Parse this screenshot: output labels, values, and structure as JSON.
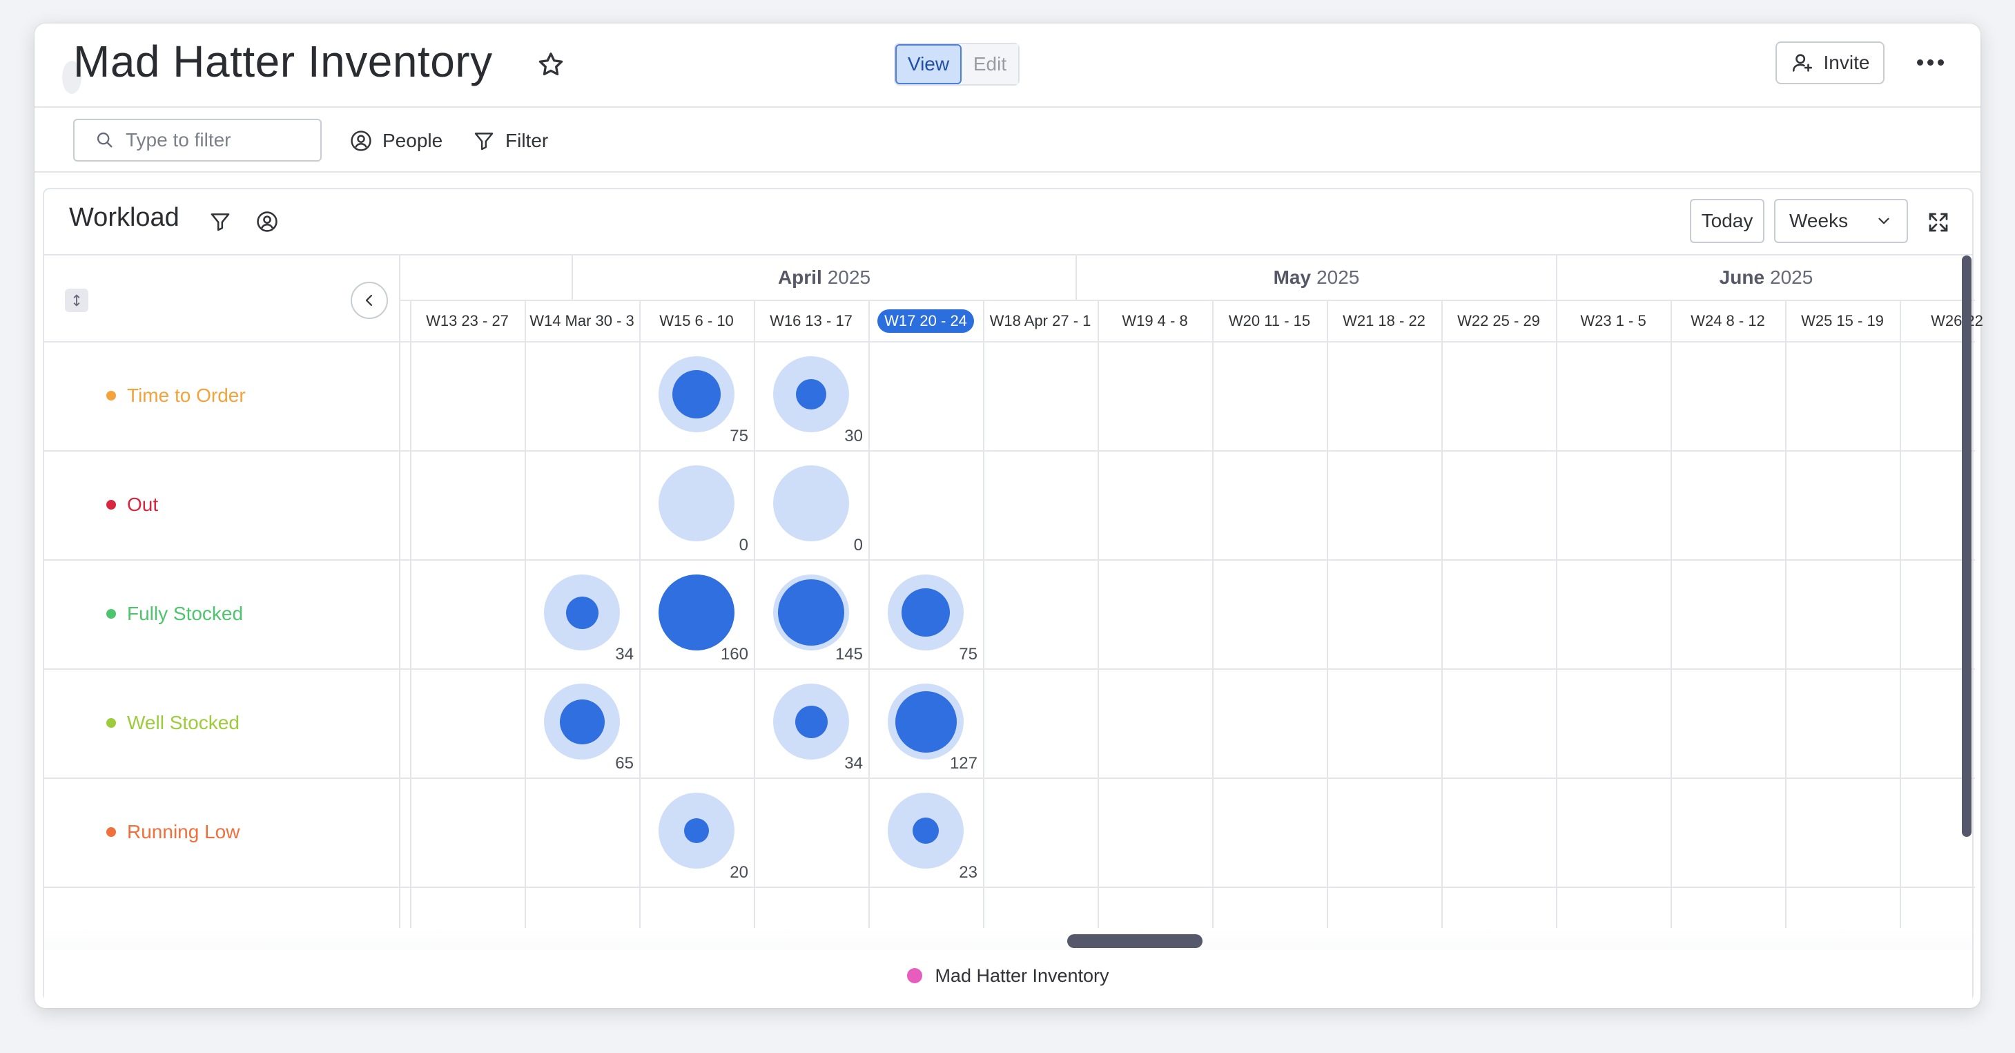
{
  "app": {
    "title": "Mad Hatter Inventory"
  },
  "header": {
    "view_label": "View",
    "edit_label": "Edit",
    "invite_label": "Invite"
  },
  "toolbar": {
    "filter_placeholder": "Type to filter",
    "people_label": "People",
    "filter_label": "Filter"
  },
  "workload": {
    "title": "Workload",
    "today_label": "Today",
    "scale_selected": "Weeks",
    "months": [
      {
        "name": "April",
        "year": "2025"
      },
      {
        "name": "May",
        "year": "2025"
      },
      {
        "name": "June",
        "year": "2025"
      }
    ],
    "weeks": [
      "W13 23 - 27",
      "W14 Mar 30 - 3",
      "W15 6 - 10",
      "W16 13 - 17",
      "W17 20 - 24",
      "W18 Apr 27 - 1",
      "W19 4 - 8",
      "W20 11 - 15",
      "W21 18 - 22",
      "W22 25 - 29",
      "W23 1 - 5",
      "W24 8 - 12",
      "W25 15 - 19",
      "W26 22"
    ],
    "current_week_index": 4,
    "rows": [
      {
        "label": "Time to Order",
        "color": "#f2a33c"
      },
      {
        "label": "Out",
        "color": "#d7263d"
      },
      {
        "label": "Fully Stocked",
        "color": "#4fc46e"
      },
      {
        "label": "Well Stocked",
        "color": "#9dcc3a"
      },
      {
        "label": "Running Low",
        "color": "#f0703c"
      }
    ],
    "bubbles": [
      {
        "row": 0,
        "week": 2,
        "value": "75",
        "level": 0.5
      },
      {
        "row": 0,
        "week": 3,
        "value": "30",
        "level": 0.2
      },
      {
        "row": 1,
        "week": 2,
        "value": "0",
        "level": 0
      },
      {
        "row": 1,
        "week": 3,
        "value": "0",
        "level": 0
      },
      {
        "row": 2,
        "week": 1,
        "value": "34",
        "level": 0.23
      },
      {
        "row": 2,
        "week": 2,
        "value": "160",
        "level": 1.0
      },
      {
        "row": 2,
        "week": 3,
        "value": "145",
        "level": 0.95
      },
      {
        "row": 2,
        "week": 4,
        "value": "75",
        "level": 0.5
      },
      {
        "row": 3,
        "week": 1,
        "value": "65",
        "level": 0.43
      },
      {
        "row": 3,
        "week": 3,
        "value": "34",
        "level": 0.23
      },
      {
        "row": 3,
        "week": 4,
        "value": "127",
        "level": 0.8
      },
      {
        "row": 4,
        "week": 2,
        "value": "20",
        "level": 0.13
      },
      {
        "row": 4,
        "week": 4,
        "value": "23",
        "level": 0.15
      }
    ],
    "legend": {
      "label": "Mad Hatter Inventory",
      "color": "#e75dbd"
    }
  }
}
